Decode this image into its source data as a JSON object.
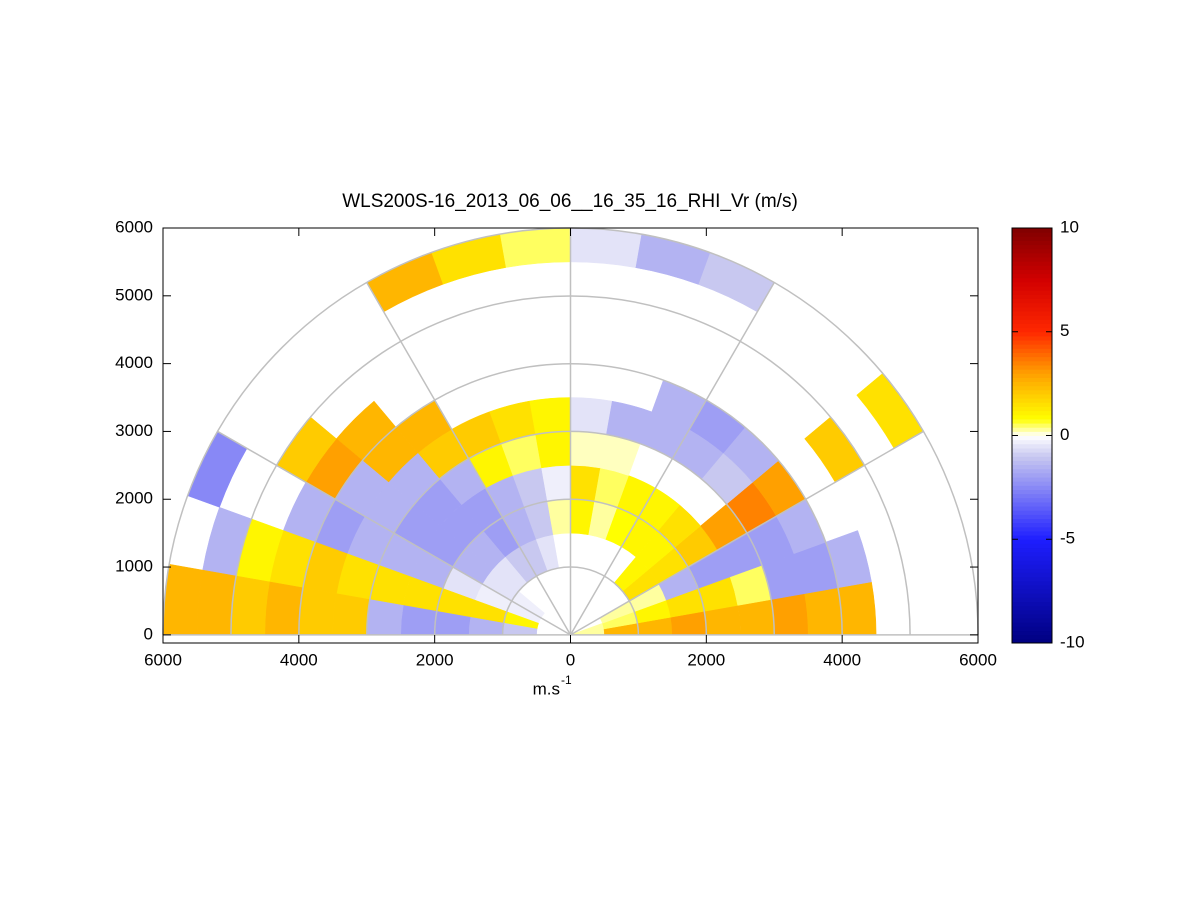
{
  "chart_data": {
    "type": "polar_heatmap",
    "title": "WLS200S-16_2013_06_06__16_35_16_RHI_Vr (m/s)",
    "xlabel": "m.s",
    "xlabel_superscript": "-1",
    "xlim": [
      -6000,
      6000
    ],
    "xticks": [
      {
        "value": -6000,
        "label": "6000"
      },
      {
        "value": -4000,
        "label": "4000"
      },
      {
        "value": -2000,
        "label": "2000"
      },
      0,
      2000,
      4000,
      6000
    ],
    "ylim": [
      -120,
      6000
    ],
    "yticks": [
      0,
      1000,
      2000,
      3000,
      4000,
      5000,
      6000
    ],
    "range_rings": [
      1000,
      2000,
      3000,
      4000,
      5000,
      6000
    ],
    "spokes": [
      0,
      30,
      60,
      90,
      120,
      150,
      180
    ],
    "clim": [
      -10,
      10
    ],
    "cticks": [
      -10,
      -5,
      0,
      5,
      10
    ],
    "angles": [
      5,
      15,
      25,
      35,
      45,
      55,
      65,
      75,
      85,
      95,
      105,
      115,
      125,
      135,
      145,
      155,
      165,
      175
    ],
    "ranges": [
      250,
      750,
      1250,
      1750,
      2250,
      2750,
      3250,
      3750,
      4250,
      4750,
      5250,
      5750
    ],
    "values": [
      [
        0.3,
        2.5,
        2.5,
        3,
        2.5,
        2.5,
        3,
        2.5,
        2.5,
        null,
        null,
        null
      ],
      [
        0.3,
        0.5,
        1,
        1.5,
        1.5,
        0.5,
        -2,
        -2,
        -1.5,
        null,
        null,
        null
      ],
      [
        null,
        0.3,
        0.3,
        -1.5,
        -2,
        -2,
        -2,
        -1.5,
        null,
        null,
        null,
        null
      ],
      [
        null,
        null,
        1.5,
        1.5,
        2,
        3,
        3.5,
        3,
        null,
        2,
        null,
        1.5
      ],
      [
        null,
        null,
        1,
        1,
        1.5,
        null,
        -1,
        -1.5,
        null,
        null,
        null,
        null
      ],
      [
        null,
        null,
        null,
        1,
        1,
        null,
        -1.5,
        -2,
        null,
        null,
        null,
        null
      ],
      [
        null,
        null,
        null,
        0.8,
        1,
        null,
        -1.5,
        -1.5,
        null,
        null,
        null,
        -1
      ],
      [
        null,
        null,
        null,
        0.3,
        0.5,
        0.2,
        -1.5,
        null,
        null,
        null,
        null,
        -1.5
      ],
      [
        null,
        null,
        null,
        1,
        1.5,
        0.2,
        -0.5,
        null,
        null,
        null,
        null,
        -0.5
      ],
      [
        null,
        null,
        null,
        0.3,
        -0.3,
        1,
        1,
        null,
        null,
        null,
        null,
        0.5
      ],
      [
        null,
        null,
        -0.5,
        -1,
        -1,
        0.5,
        1.5,
        null,
        null,
        null,
        null,
        1.5
      ],
      [
        null,
        null,
        -1,
        -1.5,
        -1.5,
        1,
        2,
        null,
        null,
        null,
        null,
        2.5
      ],
      [
        null,
        null,
        -1,
        -2,
        -2,
        -1.5,
        2,
        2.5,
        null,
        null,
        null,
        null
      ],
      [
        null,
        null,
        -0.5,
        -1.5,
        -2,
        -2,
        -1.5,
        2.5,
        2.5,
        null,
        null,
        null
      ],
      [
        null,
        -0.3,
        -0.5,
        -1.5,
        -2,
        -2,
        -1.5,
        -1.5,
        3,
        2,
        null,
        null
      ],
      [
        null,
        -0.3,
        -0.3,
        -0.5,
        -1.5,
        -1.5,
        -1.5,
        -2,
        -1.5,
        null,
        null,
        -2.5
      ],
      [
        null,
        1,
        1.5,
        1.5,
        1.5,
        1.5,
        1.5,
        2,
        1.5,
        1,
        -1.5,
        null
      ],
      [
        null,
        -1,
        -1.5,
        -2,
        -2,
        -1.5,
        2,
        2,
        2.5,
        2,
        2.5,
        2.5
      ]
    ]
  }
}
